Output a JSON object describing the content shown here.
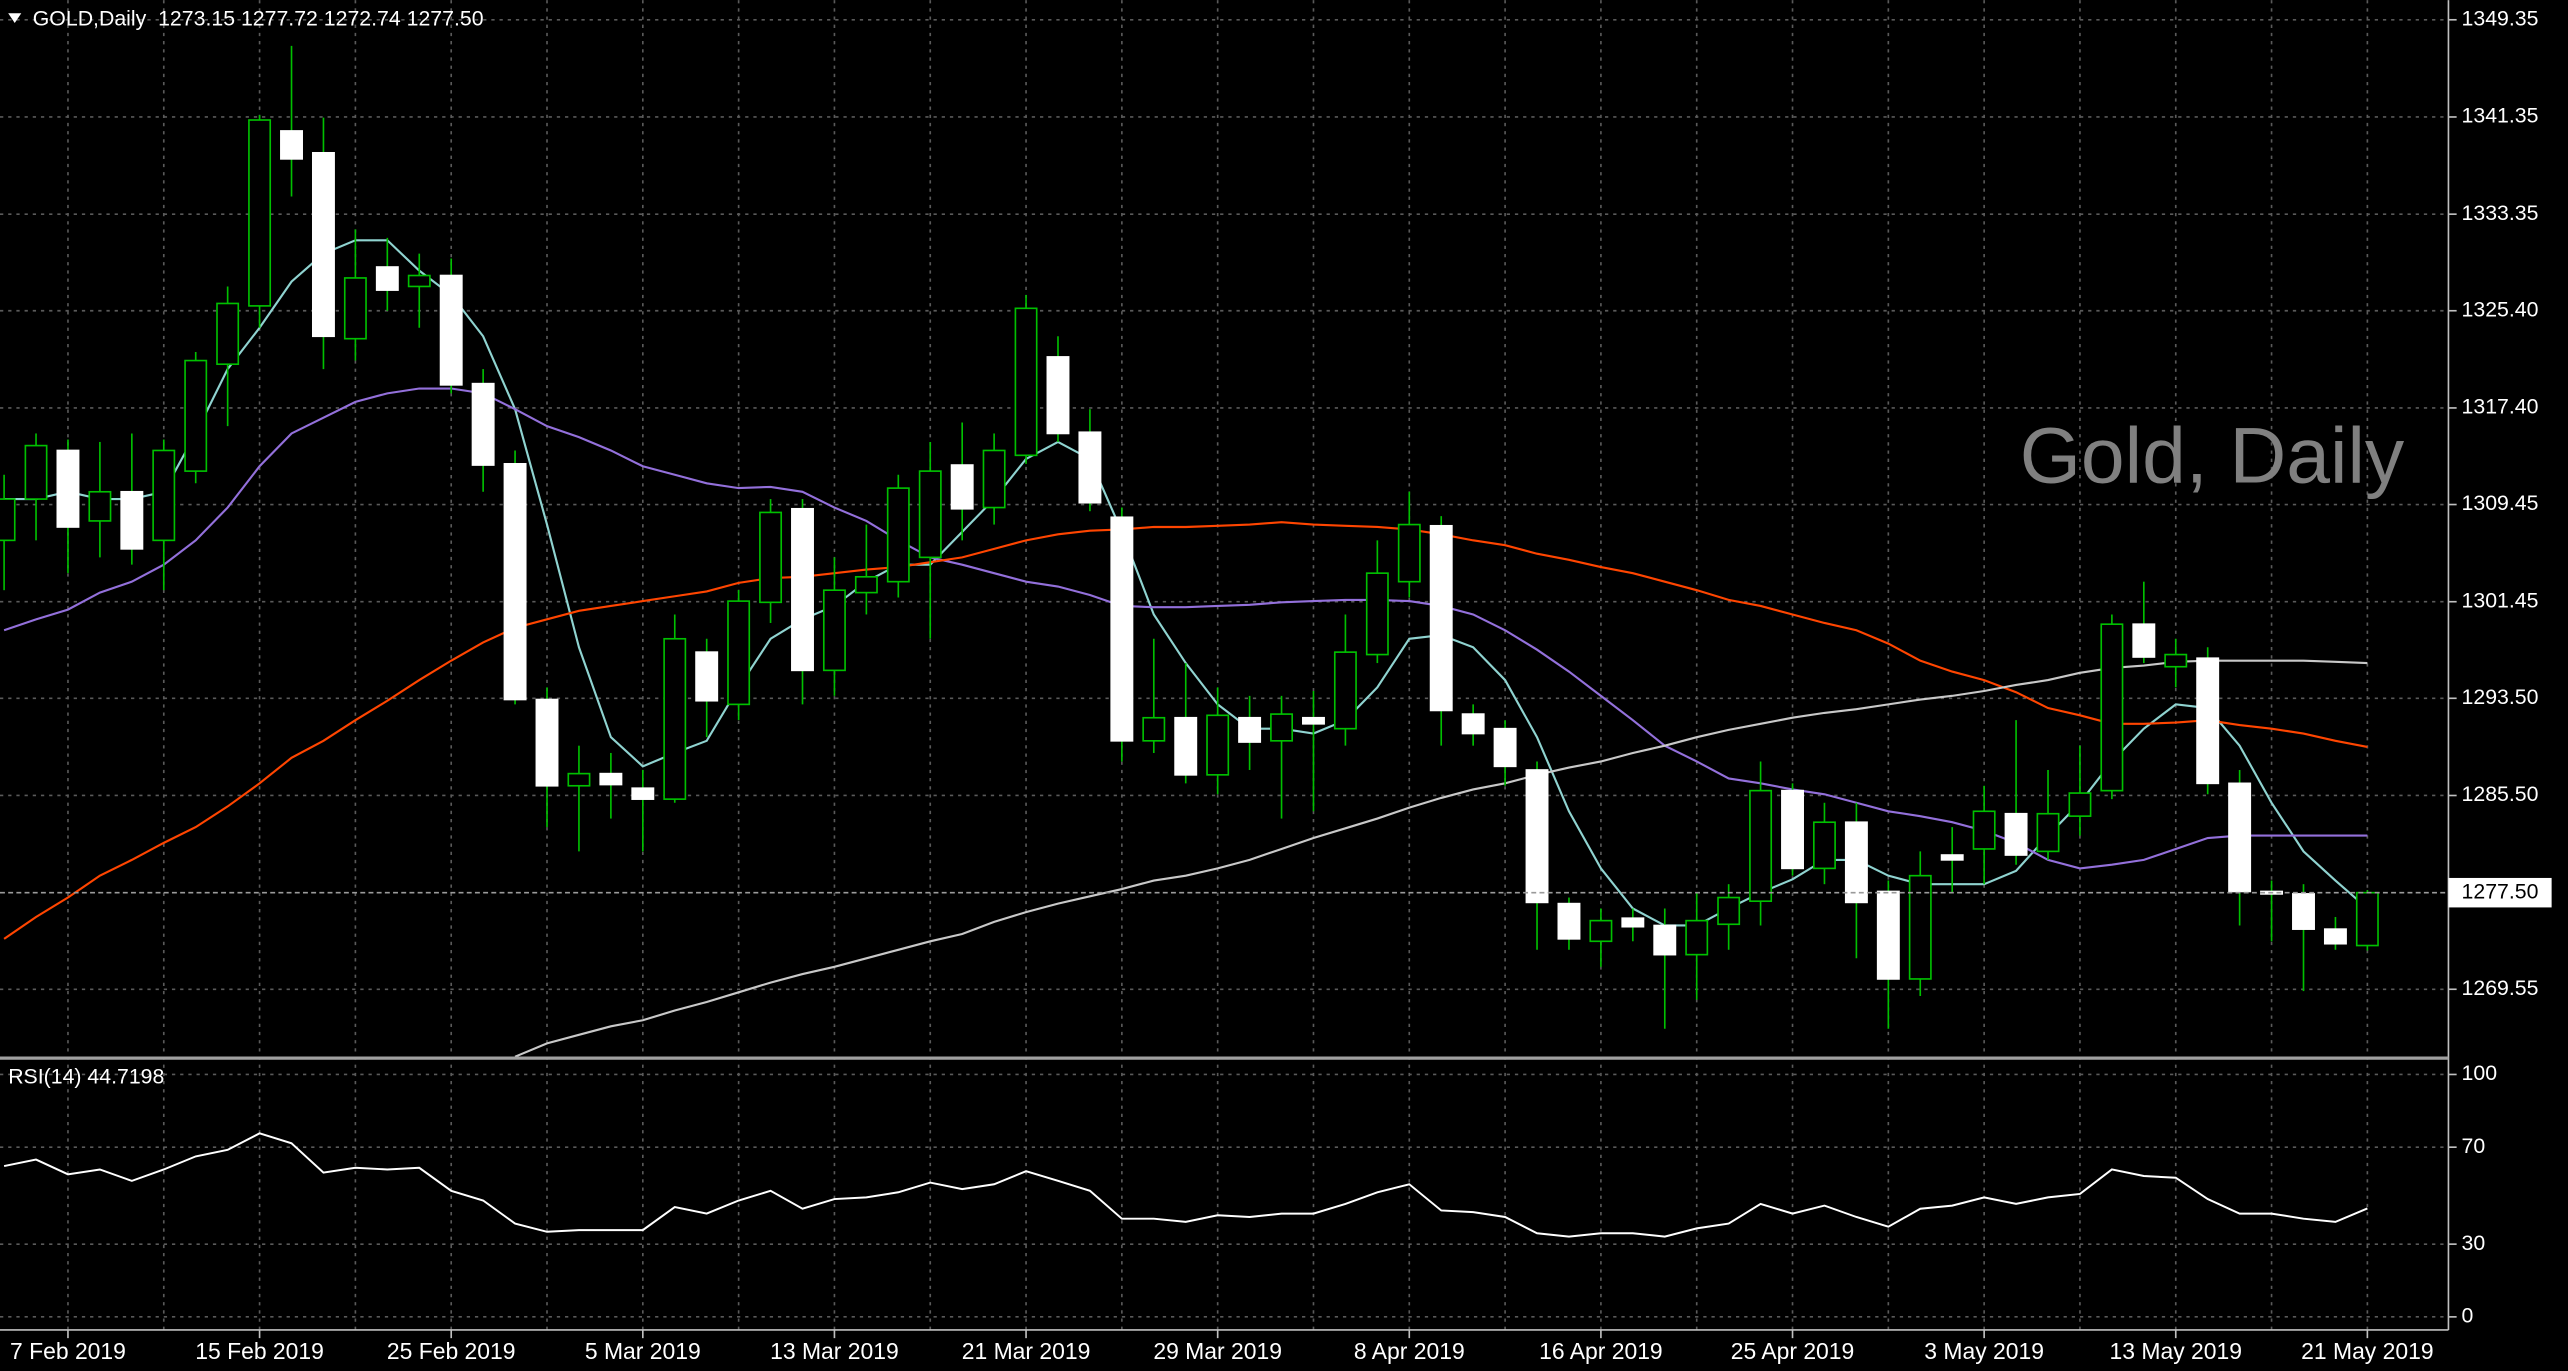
{
  "chart_data": [
    {
      "type": "candlestick",
      "title": "GOLD,Daily  1273.15 1277.72 1272.74 1277.50",
      "watermark": "Gold, Daily",
      "categories": [
        null,
        null,
        "7 Feb 2019",
        null,
        null,
        null,
        null,
        null,
        "15 Feb 2019",
        null,
        null,
        null,
        null,
        null,
        "25 Feb 2019",
        null,
        null,
        null,
        null,
        null,
        "5 Mar 2019",
        null,
        null,
        null,
        null,
        null,
        "13 Mar 2019",
        null,
        null,
        null,
        null,
        null,
        "21 Mar 2019",
        null,
        null,
        null,
        null,
        null,
        "29 Mar 2019",
        null,
        null,
        null,
        null,
        null,
        "8 Apr 2019",
        null,
        null,
        null,
        null,
        null,
        "16 Apr 2019",
        null,
        null,
        null,
        null,
        null,
        "25 Apr 2019",
        null,
        null,
        null,
        null,
        null,
        "3 May 2019",
        null,
        null,
        null,
        null,
        null,
        "13 May 2019",
        null,
        null,
        null,
        null,
        null,
        "21 May 2019"
      ],
      "open": [
        1306.5,
        1309.9,
        1313.9,
        1308.1,
        1310.5,
        1306.5,
        1312.2,
        1321.0,
        1325.8,
        1340.2,
        1338.4,
        1323.1,
        1329.0,
        1327.4,
        1328.3,
        1319.4,
        1312.8,
        1293.4,
        1286.3,
        1287.3,
        1286.1,
        1285.2,
        1297.3,
        1293.0,
        1301.4,
        1309.1,
        1295.8,
        1302.2,
        1303.1,
        1305.1,
        1312.7,
        1309.2,
        1313.5,
        1321.6,
        1315.4,
        1308.4,
        1290.0,
        1291.9,
        1287.2,
        1291.9,
        1290.0,
        1291.9,
        1291.0,
        1297.1,
        1303.1,
        1307.7,
        1292.2,
        1291.0,
        1287.6,
        1276.6,
        1273.5,
        1275.4,
        1274.8,
        1272.4,
        1274.9,
        1276.8,
        1285.9,
        1279.5,
        1283.3,
        1277.6,
        1270.4,
        1280.6,
        1281.1,
        1284.0,
        1280.9,
        1283.8,
        1285.9,
        1299.6,
        1296.1,
        1296.8,
        1286.5,
        1277.6,
        1277.4,
        1274.5,
        1273.15
      ],
      "high": [
        1311.9,
        1315.3,
        1314.8,
        1314.6,
        1315.3,
        1314.8,
        1322.0,
        1327.4,
        1341.5,
        1347.2,
        1341.3,
        1332.1,
        1331.4,
        1330.1,
        1329.7,
        1320.6,
        1313.9,
        1294.4,
        1289.6,
        1289.0,
        1287.6,
        1300.4,
        1298.4,
        1302.4,
        1309.9,
        1309.9,
        1305.1,
        1307.8,
        1311.9,
        1314.6,
        1316.2,
        1315.3,
        1326.7,
        1323.3,
        1317.3,
        1309.2,
        1298.4,
        1296.4,
        1294.4,
        1293.7,
        1293.7,
        1294.1,
        1300.4,
        1306.5,
        1310.5,
        1308.5,
        1293.0,
        1291.7,
        1288.3,
        1277.1,
        1276.2,
        1276.2,
        1276.2,
        1277.5,
        1278.2,
        1288.3,
        1286.5,
        1284.9,
        1284.9,
        1278.5,
        1280.9,
        1282.9,
        1286.3,
        1291.7,
        1287.6,
        1289.6,
        1300.4,
        1303.1,
        1298.4,
        1297.7,
        1287.6,
        1278.5,
        1278.2,
        1275.5,
        1277.72
      ],
      "low": [
        1302.4,
        1306.5,
        1303.8,
        1305.1,
        1304.5,
        1302.4,
        1311.2,
        1315.9,
        1324.0,
        1334.8,
        1320.6,
        1321.3,
        1325.4,
        1324.0,
        1318.6,
        1310.5,
        1293.0,
        1282.9,
        1280.9,
        1283.6,
        1280.9,
        1284.9,
        1290.3,
        1291.7,
        1299.7,
        1293.0,
        1293.7,
        1300.4,
        1301.8,
        1298.4,
        1306.5,
        1307.8,
        1312.8,
        1314.6,
        1308.9,
        1288.3,
        1289.0,
        1286.5,
        1285.6,
        1287.6,
        1283.6,
        1284.2,
        1289.6,
        1296.4,
        1301.8,
        1289.6,
        1289.6,
        1286.3,
        1272.8,
        1272.8,
        1271.4,
        1273.5,
        1266.3,
        1268.7,
        1272.8,
        1274.8,
        1278.9,
        1278.2,
        1272.1,
        1266.3,
        1269.0,
        1277.5,
        1278.2,
        1279.8,
        1280.2,
        1282.2,
        1285.2,
        1296.4,
        1294.4,
        1285.6,
        1274.8,
        1273.5,
        1269.4,
        1272.8,
        1272.74
      ],
      "close": [
        1309.9,
        1314.3,
        1307.6,
        1310.5,
        1305.8,
        1313.9,
        1321.3,
        1326.0,
        1341.1,
        1337.9,
        1323.3,
        1328.1,
        1327.1,
        1328.3,
        1319.3,
        1312.7,
        1293.4,
        1286.3,
        1287.3,
        1286.4,
        1285.2,
        1298.4,
        1293.3,
        1301.5,
        1308.8,
        1295.8,
        1302.4,
        1303.5,
        1310.8,
        1312.2,
        1309.1,
        1313.9,
        1325.6,
        1315.3,
        1309.6,
        1290.0,
        1291.9,
        1287.2,
        1292.1,
        1289.9,
        1292.2,
        1291.4,
        1297.3,
        1303.8,
        1307.8,
        1292.5,
        1290.6,
        1287.9,
        1276.7,
        1273.7,
        1275.2,
        1274.7,
        1272.4,
        1275.2,
        1277.1,
        1285.9,
        1279.5,
        1283.3,
        1276.7,
        1270.4,
        1278.9,
        1280.2,
        1284.2,
        1280.6,
        1284.0,
        1285.7,
        1299.6,
        1296.9,
        1297.1,
        1286.5,
        1277.6,
        1277.4,
        1274.5,
        1273.3,
        1277.5
      ],
      "up_color": "#000000",
      "down_color": "#ffffff",
      "wick_color": "#00c000",
      "series": [
        {
          "color": "#8fd3d0",
          "values": [
            1309.9,
            1309.9,
            1310.5,
            1309.9,
            1309.9,
            1310.5,
            1315.3,
            1320.6,
            1324.0,
            1327.8,
            1330.1,
            1331.2,
            1331.2,
            1328.7,
            1326.7,
            1323.3,
            1317.3,
            1307.8,
            1297.7,
            1290.3,
            1287.9,
            1289.0,
            1290.0,
            1294.4,
            1298.4,
            1300.0,
            1301.1,
            1303.1,
            1304.5,
            1304.5,
            1307.2,
            1309.9,
            1313.2,
            1314.6,
            1313.2,
            1307.2,
            1300.4,
            1296.4,
            1293.0,
            1291.0,
            1291.0,
            1290.6,
            1291.7,
            1294.4,
            1298.4,
            1298.7,
            1297.7,
            1295.0,
            1290.3,
            1284.2,
            1279.5,
            1276.2,
            1274.8,
            1274.8,
            1276.2,
            1277.5,
            1278.6,
            1280.2,
            1280.2,
            1278.9,
            1278.2,
            1278.2,
            1278.2,
            1279.3,
            1282.2,
            1284.9,
            1288.3,
            1291.0,
            1293.0,
            1292.7,
            1289.6,
            1284.9,
            1280.9,
            1278.5,
            1276.2
          ]
        },
        {
          "color": "#9370db",
          "values": [
            1299.1,
            1300.0,
            1300.8,
            1302.2,
            1303.1,
            1304.5,
            1306.5,
            1309.2,
            1312.6,
            1315.3,
            1316.6,
            1317.9,
            1318.6,
            1319.0,
            1319.0,
            1318.6,
            1317.3,
            1315.9,
            1315.0,
            1313.9,
            1312.6,
            1311.9,
            1311.2,
            1310.8,
            1310.9,
            1310.5,
            1309.2,
            1308.1,
            1306.5,
            1305.1,
            1304.5,
            1303.8,
            1303.1,
            1302.7,
            1302.0,
            1301.1,
            1301.0,
            1301.0,
            1301.1,
            1301.2,
            1301.4,
            1301.5,
            1301.6,
            1301.6,
            1301.5,
            1301.1,
            1300.4,
            1299.1,
            1297.5,
            1295.7,
            1293.7,
            1291.7,
            1289.6,
            1288.3,
            1286.9,
            1286.5,
            1286.0,
            1285.6,
            1284.9,
            1284.2,
            1283.8,
            1283.3,
            1282.6,
            1281.6,
            1280.2,
            1279.5,
            1279.8,
            1280.2,
            1281.1,
            1282.0,
            1282.2,
            1282.2,
            1282.2,
            1282.2,
            1282.2
          ]
        },
        {
          "color": "#ff4500",
          "values": [
            1273.7,
            1275.5,
            1277.1,
            1278.9,
            1280.2,
            1281.6,
            1282.9,
            1284.6,
            1286.5,
            1288.6,
            1290.0,
            1291.7,
            1293.3,
            1295.0,
            1296.6,
            1298.1,
            1299.3,
            1300.0,
            1300.7,
            1301.1,
            1301.5,
            1301.9,
            1302.3,
            1303.0,
            1303.4,
            1303.5,
            1303.8,
            1304.1,
            1304.3,
            1304.7,
            1305.1,
            1305.8,
            1306.5,
            1307.0,
            1307.3,
            1307.4,
            1307.6,
            1307.6,
            1307.7,
            1307.8,
            1308.0,
            1307.8,
            1307.7,
            1307.6,
            1307.4,
            1307.0,
            1306.5,
            1306.1,
            1305.4,
            1304.9,
            1304.3,
            1303.8,
            1303.1,
            1302.4,
            1301.6,
            1301.1,
            1300.4,
            1299.7,
            1299.1,
            1298.0,
            1296.6,
            1295.7,
            1295.0,
            1294.0,
            1292.7,
            1292.1,
            1291.4,
            1291.4,
            1291.5,
            1291.7,
            1291.3,
            1291.0,
            1290.6,
            1290.0,
            1289.5
          ]
        },
        {
          "color": "#c8c8c8",
          "values": [
            null,
            null,
            null,
            null,
            null,
            null,
            null,
            null,
            null,
            null,
            null,
            null,
            null,
            null,
            null,
            null,
            1264.0,
            1265.1,
            1265.8,
            1266.5,
            1267.0,
            1267.8,
            1268.5,
            1269.3,
            1270.1,
            1270.8,
            1271.4,
            1272.1,
            1272.8,
            1273.5,
            1274.1,
            1275.1,
            1275.9,
            1276.6,
            1277.2,
            1277.8,
            1278.5,
            1278.9,
            1279.5,
            1280.2,
            1281.1,
            1282.0,
            1282.8,
            1283.6,
            1284.5,
            1285.3,
            1286.0,
            1286.5,
            1287.2,
            1287.8,
            1288.3,
            1289.0,
            1289.6,
            1290.3,
            1290.9,
            1291.4,
            1291.9,
            1292.3,
            1292.6,
            1293.0,
            1293.4,
            1293.7,
            1294.1,
            1294.6,
            1295.0,
            1295.6,
            1296.0,
            1296.2,
            1296.5,
            1296.6,
            1296.6,
            1296.6,
            1296.6,
            1296.5,
            1296.4
          ]
        }
      ],
      "ylim": [
        1264.02,
        1350.97
      ],
      "yticks": [
        1349.35,
        1341.35,
        1333.35,
        {
          "value": 1325.4,
          "label": "1325.40"
        },
        {
          "value": 1317.4,
          "label": "1317.40"
        },
        1309.45,
        1301.45,
        {
          "value": 1293.5,
          "label": "1293.50"
        },
        {
          "value": 1285.5,
          "label": "1285.50"
        },
        1269.55
      ],
      "last_price": {
        "value": 1277.5,
        "label": "1277.50"
      },
      "grid": true
    },
    {
      "type": "line",
      "title": "RSI(14) 44.7198",
      "color": "#ffffff",
      "values": [
        62.2,
        64.9,
        58.8,
        60.8,
        56.1,
        60.8,
        66.2,
        68.9,
        75.7,
        71.6,
        59.5,
        61.5,
        60.8,
        61.5,
        52.0,
        48.0,
        38.5,
        35.1,
        35.8,
        35.8,
        35.8,
        45.3,
        42.6,
        48.0,
        52.0,
        44.6,
        48.6,
        49.3,
        51.4,
        55.4,
        52.7,
        54.7,
        60.1,
        56.1,
        52.0,
        40.5,
        40.5,
        39.2,
        41.9,
        41.2,
        42.6,
        42.6,
        46.6,
        51.4,
        54.7,
        43.9,
        43.2,
        41.2,
        34.5,
        33.1,
        34.5,
        34.5,
        33.1,
        36.5,
        38.5,
        46.6,
        42.6,
        45.9,
        41.2,
        37.2,
        44.6,
        45.9,
        49.3,
        46.6,
        49.3,
        50.7,
        60.8,
        58.1,
        57.4,
        48.6,
        42.6,
        42.6,
        40.5,
        39.2,
        44.7198
      ],
      "ylim": [
        -5.4,
        105.4
      ],
      "yticks": [
        0,
        30,
        70,
        100
      ],
      "grid": true
    }
  ]
}
